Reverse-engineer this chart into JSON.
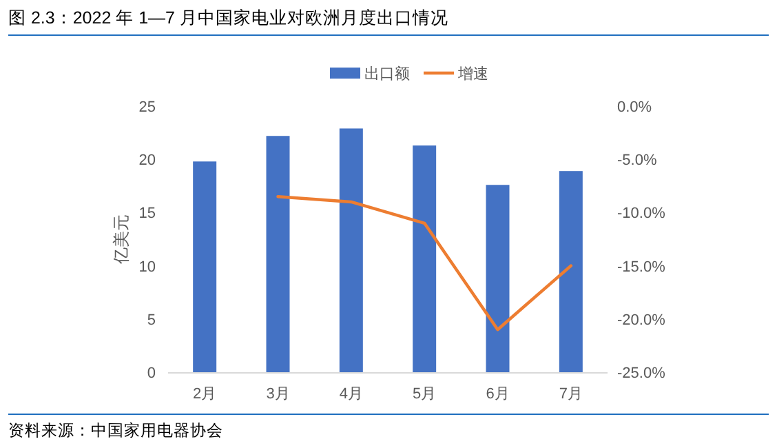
{
  "chart_data": {
    "type": "bar",
    "title": "图 2.3：2022 年 1—7 月中国家电业对欧洲月度出口情况",
    "ylabel": "亿美元",
    "categories": [
      "2月",
      "3月",
      "4月",
      "5月",
      "6月",
      "7月"
    ],
    "series": [
      {
        "name": "出口额",
        "color": "#4472c4",
        "values": [
          19.8,
          22.2,
          22.9,
          21.3,
          17.6,
          18.9
        ]
      },
      {
        "name": "增速",
        "type": "line",
        "axis": "y2",
        "color": "#ed7d31",
        "values": [
          null,
          -8.5,
          -9.0,
          -11.0,
          -21.0,
          -15.0
        ]
      }
    ],
    "ylim": [
      0,
      25
    ],
    "yticks": [
      0,
      5,
      10,
      15,
      20,
      25
    ],
    "y2lim": [
      -25,
      0
    ],
    "y2ticks": [
      {
        "value": 0,
        "label": "0.0%"
      },
      {
        "value": -5,
        "label": "-5.0%"
      },
      {
        "value": -10,
        "label": "-10.0%"
      },
      {
        "value": -15,
        "label": "-15.0%"
      },
      {
        "value": -20,
        "label": "-20.0%"
      },
      {
        "value": -25,
        "label": "-25.0%"
      }
    ],
    "legend": "top",
    "grid": false,
    "annotations": [
      "资料来源：中国家用电器协会"
    ]
  }
}
